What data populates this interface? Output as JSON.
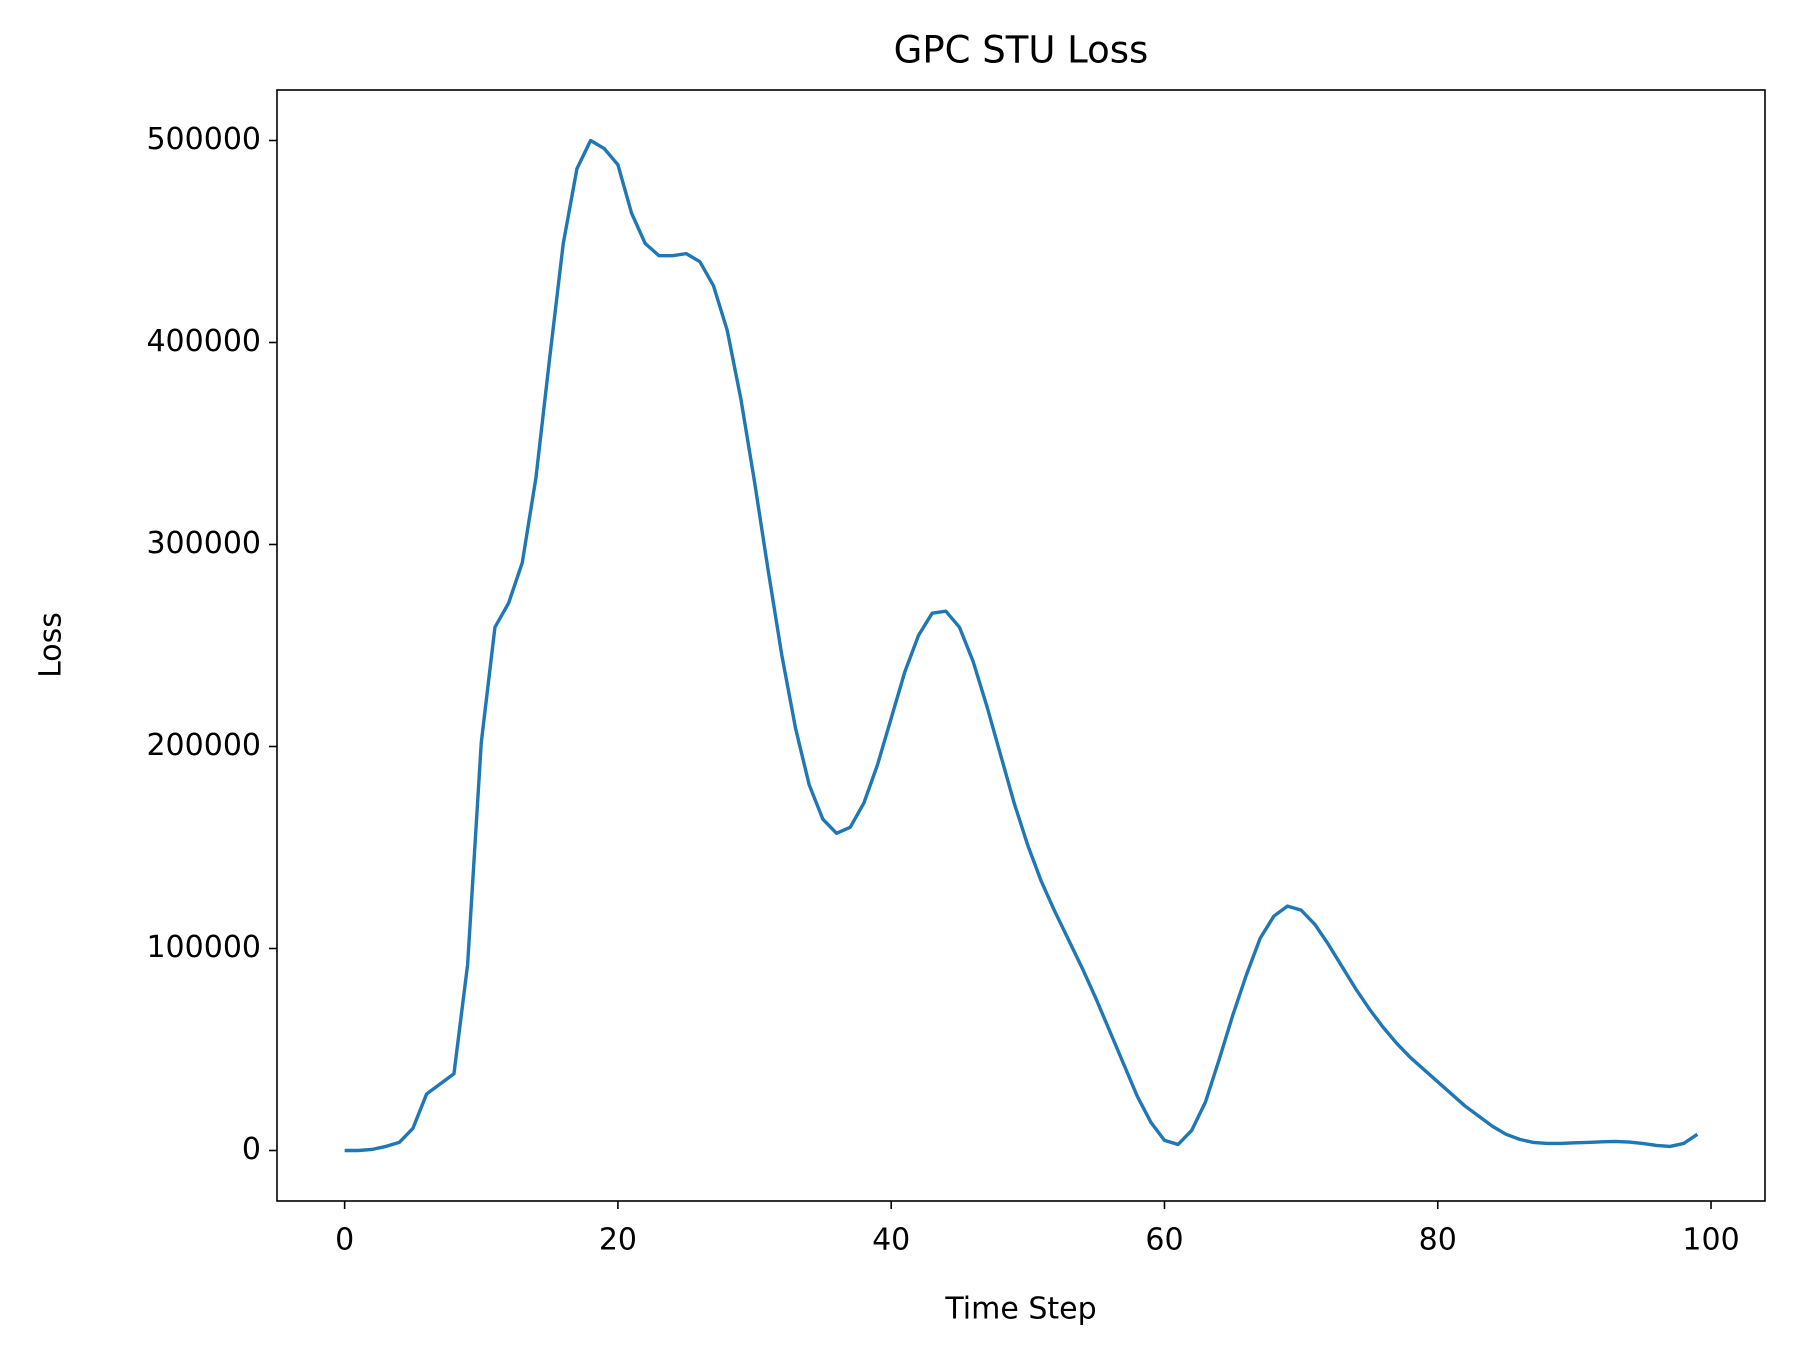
{
  "chart_data": {
    "type": "line",
    "title": "GPC STU Loss",
    "x_label": "Time Step",
    "y_label": "Loss",
    "x": [
      0,
      1,
      2,
      3,
      4,
      5,
      6,
      7,
      8,
      9,
      10,
      11,
      12,
      13,
      14,
      15,
      16,
      17,
      18,
      19,
      20,
      21,
      22,
      23,
      24,
      25,
      26,
      27,
      28,
      29,
      30,
      31,
      32,
      33,
      34,
      35,
      36,
      37,
      38,
      39,
      40,
      41,
      42,
      43,
      44,
      45,
      46,
      47,
      48,
      49,
      50,
      51,
      52,
      53,
      54,
      55,
      56,
      57,
      58,
      59,
      60,
      61,
      62,
      63,
      64,
      65,
      66,
      67,
      68,
      69,
      70,
      71,
      72,
      73,
      74,
      75,
      76,
      77,
      78,
      79,
      80,
      81,
      82,
      83,
      84,
      85,
      86,
      87,
      88,
      89,
      90,
      91,
      92,
      93,
      94,
      95,
      96,
      97,
      98,
      99
    ],
    "series": [
      {
        "name": "Loss",
        "color": "#1f77b4",
        "values": [
          0,
          0,
          500,
          2000,
          4000,
          11000,
          28000,
          33000,
          38000,
          92000,
          202000,
          259000,
          271000,
          291000,
          333000,
          392000,
          449000,
          486000,
          500000,
          496000,
          488000,
          464000,
          449000,
          443000,
          443000,
          444000,
          440000,
          428000,
          406000,
          372000,
          331000,
          287000,
          245000,
          209000,
          181000,
          164000,
          157000,
          160000,
          172000,
          191000,
          214000,
          237000,
          255000,
          266000,
          267000,
          259000,
          242000,
          220000,
          196000,
          172000,
          151000,
          133000,
          118000,
          104000,
          90000,
          75000,
          59000,
          43000,
          27000,
          14000,
          5000,
          3000,
          10000,
          24000,
          45000,
          67000,
          87000,
          105000,
          116000,
          121000,
          119000,
          112000,
          102000,
          91000,
          80000,
          70000,
          61000,
          53000,
          46000,
          40000,
          34000,
          28000,
          22000,
          17000,
          12000,
          8000,
          5500,
          4000,
          3500,
          3500,
          3800,
          4000,
          4300,
          4500,
          4200,
          3500,
          2500,
          2000,
          3500,
          8000
        ]
      }
    ],
    "xlim": [
      -4.95,
      103.95
    ],
    "ylim": [
      -25000,
      525000
    ],
    "xticks": [
      0,
      20,
      40,
      60,
      80,
      100
    ],
    "yticks": [
      0,
      100000,
      200000,
      300000,
      400000,
      500000
    ]
  }
}
